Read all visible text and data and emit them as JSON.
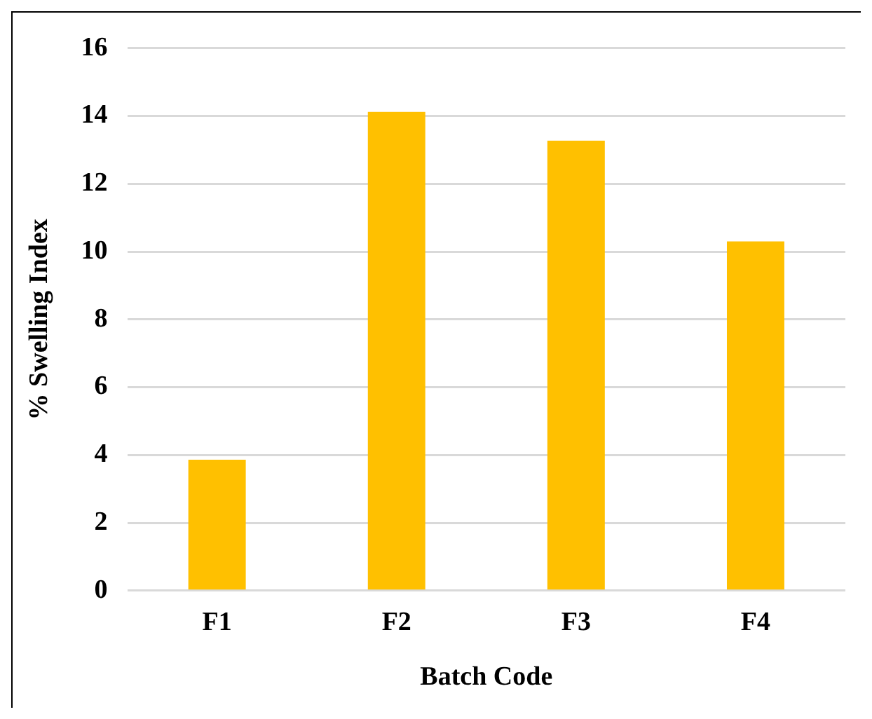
{
  "chart_data": {
    "type": "bar",
    "xlabel": "Batch Code",
    "ylabel": "% Swelling Index",
    "categories": [
      "F1",
      "F2",
      "F3",
      "F4"
    ],
    "values": [
      3.86,
      14.12,
      13.27,
      10.3
    ],
    "color": "#ffc000",
    "ylim": [
      0,
      16
    ],
    "yticks": [
      0,
      2,
      4,
      6,
      8,
      10,
      12,
      14,
      16
    ],
    "grid": "y",
    "legend": false
  }
}
